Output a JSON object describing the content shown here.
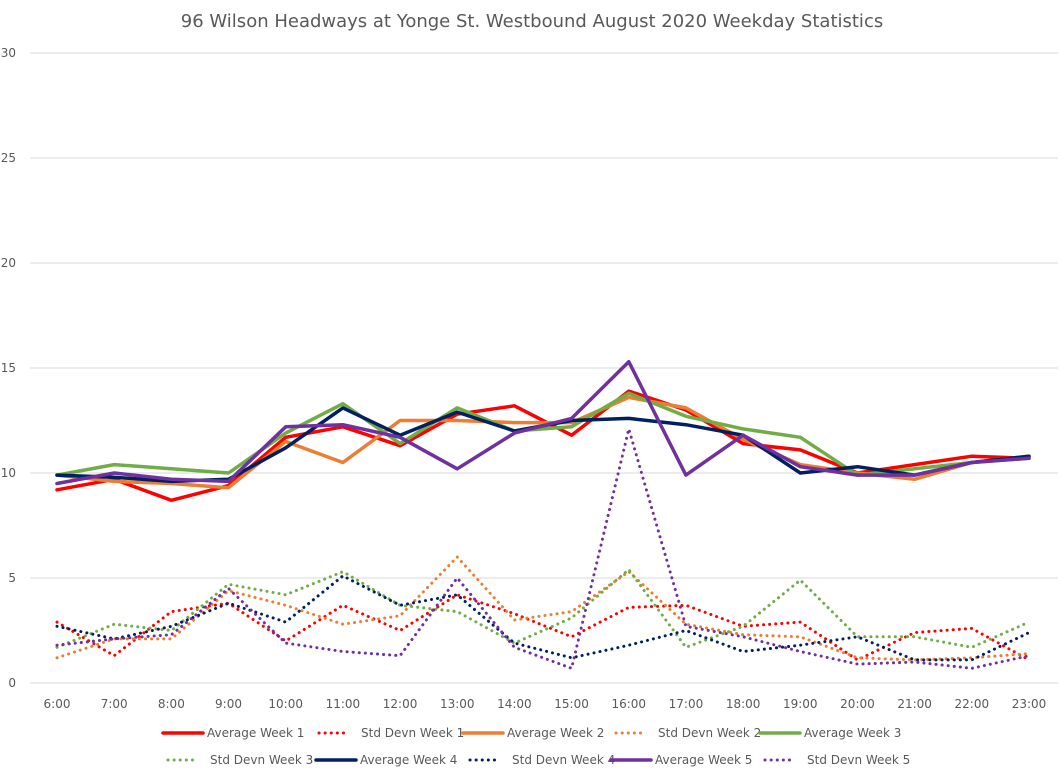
{
  "chart_data": {
    "type": "line",
    "title": "96 Wilson Headways at Yonge St. Westbound August 2020 Weekday Statistics",
    "xlabel": "",
    "ylabel": "",
    "ylim": [
      0,
      30
    ],
    "yticks": [
      "0",
      "5",
      "10",
      "15",
      "20",
      "25",
      "30"
    ],
    "ytick_values": [
      0,
      5,
      10,
      15,
      20,
      25,
      30
    ],
    "grid": true,
    "legend_position": "bottom",
    "categories": [
      "6:00",
      "7:00",
      "8:00",
      "9:00",
      "10:00",
      "11:00",
      "12:00",
      "13:00",
      "14:00",
      "15:00",
      "16:00",
      "17:00",
      "18:00",
      "19:00",
      "20:00",
      "21:00",
      "22:00",
      "23:00"
    ],
    "series": [
      {
        "name": "Average Week 1",
        "color": "#ff0000",
        "style": "solid",
        "values": [
          9.2,
          9.7,
          8.7,
          9.4,
          11.7,
          12.2,
          11.3,
          12.8,
          13.2,
          11.8,
          13.9,
          13.0,
          11.4,
          11.1,
          10.0,
          10.4,
          10.8,
          10.7
        ]
      },
      {
        "name": "Std Devn Week 1",
        "color": "#ff0000",
        "style": "dotted",
        "values": [
          2.9,
          1.3,
          3.4,
          3.8,
          2.0,
          3.7,
          2.5,
          4.2,
          3.3,
          2.2,
          3.6,
          3.7,
          2.7,
          2.9,
          1.1,
          2.4,
          2.6,
          1.1
        ]
      },
      {
        "name": "Average Week 2",
        "color": "#ed7d31",
        "style": "solid",
        "values": [
          9.9,
          9.6,
          9.5,
          9.3,
          11.5,
          10.5,
          12.5,
          12.5,
          12.4,
          12.4,
          13.6,
          13.1,
          11.6,
          10.4,
          10.0,
          9.7,
          10.5,
          10.8
        ]
      },
      {
        "name": "Std Devn Week 2",
        "color": "#ed7d31",
        "style": "dotted",
        "values": [
          1.2,
          2.1,
          2.1,
          4.4,
          3.7,
          2.8,
          3.2,
          6.0,
          3.0,
          3.4,
          5.3,
          2.8,
          2.3,
          2.2,
          1.2,
          1.1,
          1.2,
          1.4
        ]
      },
      {
        "name": "Average Week 3",
        "color": "#70ad47",
        "style": "solid",
        "values": [
          9.9,
          10.4,
          10.2,
          10.0,
          11.9,
          13.3,
          11.4,
          13.1,
          12.0,
          12.2,
          13.8,
          12.7,
          12.1,
          11.7,
          9.9,
          10.2,
          10.5,
          10.7
        ]
      },
      {
        "name": "Std Devn Week 3",
        "color": "#70ad47",
        "style": "dotted",
        "values": [
          1.7,
          2.8,
          2.5,
          4.7,
          4.2,
          5.3,
          3.7,
          3.4,
          1.9,
          3.1,
          5.4,
          1.7,
          2.7,
          4.9,
          2.2,
          2.2,
          1.7,
          2.9
        ]
      },
      {
        "name": "Average Week 4",
        "color": "#002060",
        "style": "solid",
        "values": [
          9.9,
          9.8,
          9.6,
          9.7,
          11.2,
          13.1,
          11.8,
          12.9,
          12.0,
          12.5,
          12.6,
          12.3,
          11.8,
          10.0,
          10.3,
          9.9,
          10.5,
          10.8
        ]
      },
      {
        "name": "Std Devn Week 4",
        "color": "#002060",
        "style": "dotted",
        "values": [
          2.7,
          2.1,
          2.7,
          3.8,
          2.9,
          5.1,
          3.7,
          4.2,
          1.9,
          1.2,
          1.8,
          2.5,
          1.5,
          1.8,
          2.2,
          1.1,
          1.1,
          2.4
        ]
      },
      {
        "name": "Average Week 5",
        "color": "#7030a0",
        "style": "solid",
        "values": [
          9.5,
          10.0,
          9.7,
          9.6,
          12.2,
          12.3,
          11.7,
          10.2,
          11.9,
          12.6,
          15.3,
          9.9,
          11.8,
          10.3,
          9.9,
          9.9,
          10.5,
          10.7
        ]
      },
      {
        "name": "Std Devn Week 5",
        "color": "#7030a0",
        "style": "dotted",
        "values": [
          1.8,
          2.1,
          2.3,
          4.5,
          1.9,
          1.5,
          1.3,
          5.0,
          1.7,
          0.7,
          12.1,
          2.7,
          2.2,
          1.5,
          0.9,
          1.0,
          0.7,
          1.3
        ]
      }
    ]
  }
}
